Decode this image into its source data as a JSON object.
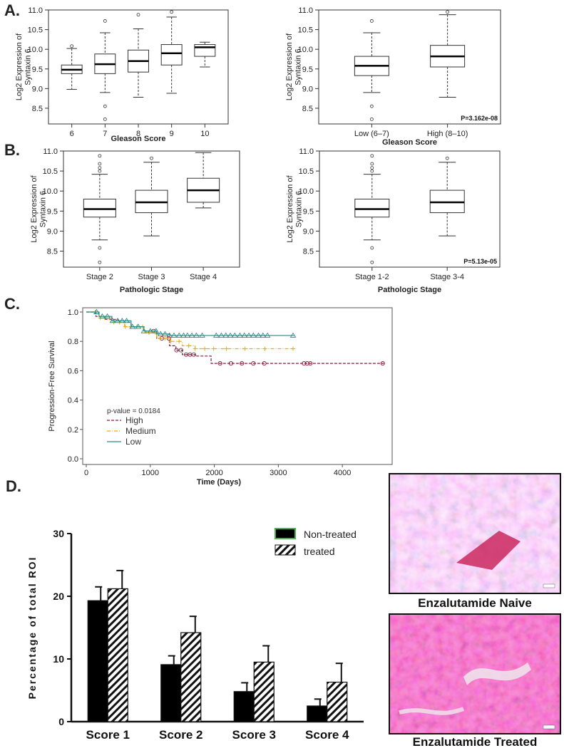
{
  "panels": {
    "A": "A.",
    "B": "B.",
    "C": "C.",
    "D": "D."
  },
  "chart_data": [
    {
      "id": "a1",
      "type": "box",
      "ylabel": "Log2 Expression of Syntaxin 6",
      "xlabel": "Gleason Score",
      "categories": [
        "6",
        "7",
        "8",
        "9",
        "10"
      ],
      "ylim": [
        8.1,
        11.0
      ],
      "yticks": [
        "8.5",
        "9.0",
        "9.5",
        "10.0",
        "10.5",
        "11.0"
      ],
      "pvalue": "",
      "boxes": [
        {
          "min": 8.98,
          "q1": 9.38,
          "median": 9.48,
          "q3": 9.6,
          "max": 10.02,
          "outliers": [
            10.08
          ]
        },
        {
          "min": 8.9,
          "q1": 9.38,
          "median": 9.62,
          "q3": 9.88,
          "max": 10.42,
          "outliers": [
            10.72,
            8.55,
            8.22
          ]
        },
        {
          "min": 8.78,
          "q1": 9.42,
          "median": 9.7,
          "q3": 9.98,
          "max": 10.52,
          "outliers": [
            10.88
          ]
        },
        {
          "min": 8.88,
          "q1": 9.6,
          "median": 9.9,
          "q3": 10.12,
          "max": 10.82,
          "outliers": [
            10.95
          ]
        },
        {
          "min": 9.55,
          "q1": 9.82,
          "median": 10.05,
          "q3": 10.12,
          "max": 10.18,
          "outliers": []
        }
      ]
    },
    {
      "id": "a2",
      "type": "box",
      "ylabel": "Log2 Expression of Syntaxin 6",
      "xlabel": "Gleason Score",
      "categories": [
        "Low (6–7)",
        "High (8–10)"
      ],
      "ylim": [
        8.1,
        11.0
      ],
      "yticks": [
        "8.5",
        "9.0",
        "9.5",
        "10.0",
        "10.5",
        "11.0"
      ],
      "pvalue": "P=3.162e-08",
      "boxes": [
        {
          "min": 8.9,
          "q1": 9.33,
          "median": 9.58,
          "q3": 9.82,
          "max": 10.42,
          "outliers": [
            10.72,
            8.55,
            8.22
          ]
        },
        {
          "min": 8.78,
          "q1": 9.55,
          "median": 9.82,
          "q3": 10.1,
          "max": 10.88,
          "outliers": [
            10.95
          ]
        }
      ]
    },
    {
      "id": "b1",
      "type": "box",
      "ylabel": "Log2 Expression of Syntaxin 6",
      "xlabel": "Pathologic Stage",
      "categories": [
        "Stage 2",
        "Stage 3",
        "Stage 4"
      ],
      "ylim": [
        8.1,
        11.0
      ],
      "yticks": [
        "8.5",
        "9.0",
        "9.5",
        "10.0",
        "10.5",
        "11.0"
      ],
      "pvalue": "",
      "boxes": [
        {
          "min": 8.78,
          "q1": 9.35,
          "median": 9.55,
          "q3": 9.8,
          "max": 10.42,
          "outliers": [
            10.88,
            10.68,
            10.58,
            10.5,
            8.58,
            8.22
          ]
        },
        {
          "min": 8.88,
          "q1": 9.46,
          "median": 9.72,
          "q3": 10.02,
          "max": 10.72,
          "outliers": [
            10.82
          ]
        },
        {
          "min": 9.58,
          "q1": 9.72,
          "median": 10.02,
          "q3": 10.32,
          "max": 10.96,
          "outliers": []
        }
      ]
    },
    {
      "id": "b2",
      "type": "box",
      "ylabel": "Log2 Expression of Syntaxin 6",
      "xlabel": "Pathologic Stage",
      "categories": [
        "Stage 1-2",
        "Stage 3-4"
      ],
      "ylim": [
        8.1,
        11.0
      ],
      "yticks": [
        "8.5",
        "9.0",
        "9.5",
        "10.0",
        "10.5",
        "11.0"
      ],
      "pvalue": "P=5.13e-05",
      "boxes": [
        {
          "min": 8.78,
          "q1": 9.35,
          "median": 9.55,
          "q3": 9.8,
          "max": 10.42,
          "outliers": [
            10.88,
            10.68,
            10.58,
            10.5,
            8.58,
            8.22
          ]
        },
        {
          "min": 8.88,
          "q1": 9.46,
          "median": 9.72,
          "q3": 10.02,
          "max": 10.72,
          "outliers": [
            10.82
          ]
        }
      ]
    },
    {
      "id": "c",
      "type": "line",
      "title": "",
      "ylabel": "Progression-Free Survival",
      "xlabel": "Time (Days)",
      "xlim": [
        0,
        4700
      ],
      "ylim": [
        0,
        1.0
      ],
      "xticks": [
        "0",
        "1000",
        "2000",
        "3000",
        "4000"
      ],
      "yticks": [
        "0.0",
        "0.2",
        "0.4",
        "0.6",
        "0.8",
        "1.0"
      ],
      "pvalue_label": "p-value = 0.0184",
      "series": [
        {
          "name": "High",
          "color": "#8b1a3a",
          "steps": [
            [
              0,
              1.0
            ],
            [
              150,
              0.97
            ],
            [
              300,
              0.95
            ],
            [
              500,
              0.93
            ],
            [
              700,
              0.9
            ],
            [
              900,
              0.87
            ],
            [
              1100,
              0.82
            ],
            [
              1300,
              0.77
            ],
            [
              1400,
              0.74
            ],
            [
              1500,
              0.71
            ],
            [
              1700,
              0.7
            ],
            [
              1950,
              0.65
            ],
            [
              4650,
              0.65
            ]
          ],
          "censors": [
            1050,
            1180,
            1290,
            1410,
            1480,
            1560,
            1620,
            1680,
            2090,
            2260,
            2430,
            2610,
            2780,
            3400,
            3450,
            3500,
            4630
          ]
        },
        {
          "name": "Medium",
          "color": "#f5a800",
          "steps": [
            [
              0,
              1.0
            ],
            [
              200,
              0.96
            ],
            [
              400,
              0.93
            ],
            [
              600,
              0.9
            ],
            [
              900,
              0.86
            ],
            [
              1100,
              0.82
            ],
            [
              1300,
              0.8
            ],
            [
              1500,
              0.77
            ],
            [
              1700,
              0.75
            ],
            [
              3250,
              0.75
            ]
          ],
          "censors": [
            140,
            220,
            290,
            360,
            430,
            520,
            610,
            700,
            790,
            880,
            980,
            1080,
            1160,
            1230,
            1320,
            1450,
            1600,
            1700,
            1850,
            1990,
            2190,
            2480,
            2790,
            3230
          ]
        },
        {
          "name": "Low",
          "color": "#2a8a8a",
          "steps": [
            [
              0,
              1.0
            ],
            [
              200,
              0.97
            ],
            [
              400,
              0.94
            ],
            [
              700,
              0.9
            ],
            [
              900,
              0.87
            ],
            [
              1100,
              0.85
            ],
            [
              1300,
              0.84
            ],
            [
              3250,
              0.84
            ]
          ],
          "censors": [
            160,
            250,
            330,
            410,
            490,
            560,
            630,
            720,
            810,
            900,
            1000,
            1090,
            1160,
            1230,
            1300,
            1370,
            1450,
            1520,
            1580,
            1650,
            1720,
            1810,
            2030,
            2110,
            2180,
            2250,
            2320,
            2400,
            2470,
            2540,
            2610,
            2690,
            2760,
            2830,
            3230
          ]
        }
      ]
    },
    {
      "id": "d",
      "type": "bar",
      "ylabel": "Percentage of total ROI",
      "categories": [
        "Score 1",
        "Score 2",
        "Score 3",
        "Score 4"
      ],
      "ylim": [
        0,
        30
      ],
      "yticks": [
        "0",
        "10",
        "20",
        "30"
      ],
      "series": [
        {
          "name": "Non-treated",
          "values": [
            19.3,
            9.1,
            4.8,
            2.5
          ],
          "errors": [
            2.2,
            1.4,
            1.4,
            1.1
          ]
        },
        {
          "name": "treated",
          "values": [
            21.2,
            14.2,
            9.5,
            6.3
          ],
          "errors": [
            2.9,
            2.6,
            2.6,
            3.0
          ]
        }
      ]
    }
  ],
  "legend_c": [
    "High",
    "Medium",
    "Low"
  ],
  "legend_d": [
    "Non-treated",
    "treated"
  ],
  "ihc": {
    "top_caption": "Enzalutamide Naive",
    "bottom_caption": "Enzalutamide Treated"
  },
  "colors": {
    "high": "#8b1a3a",
    "medium": "#f5a800",
    "low": "#2a8a8a",
    "legend_green_border": "#4caf50"
  }
}
